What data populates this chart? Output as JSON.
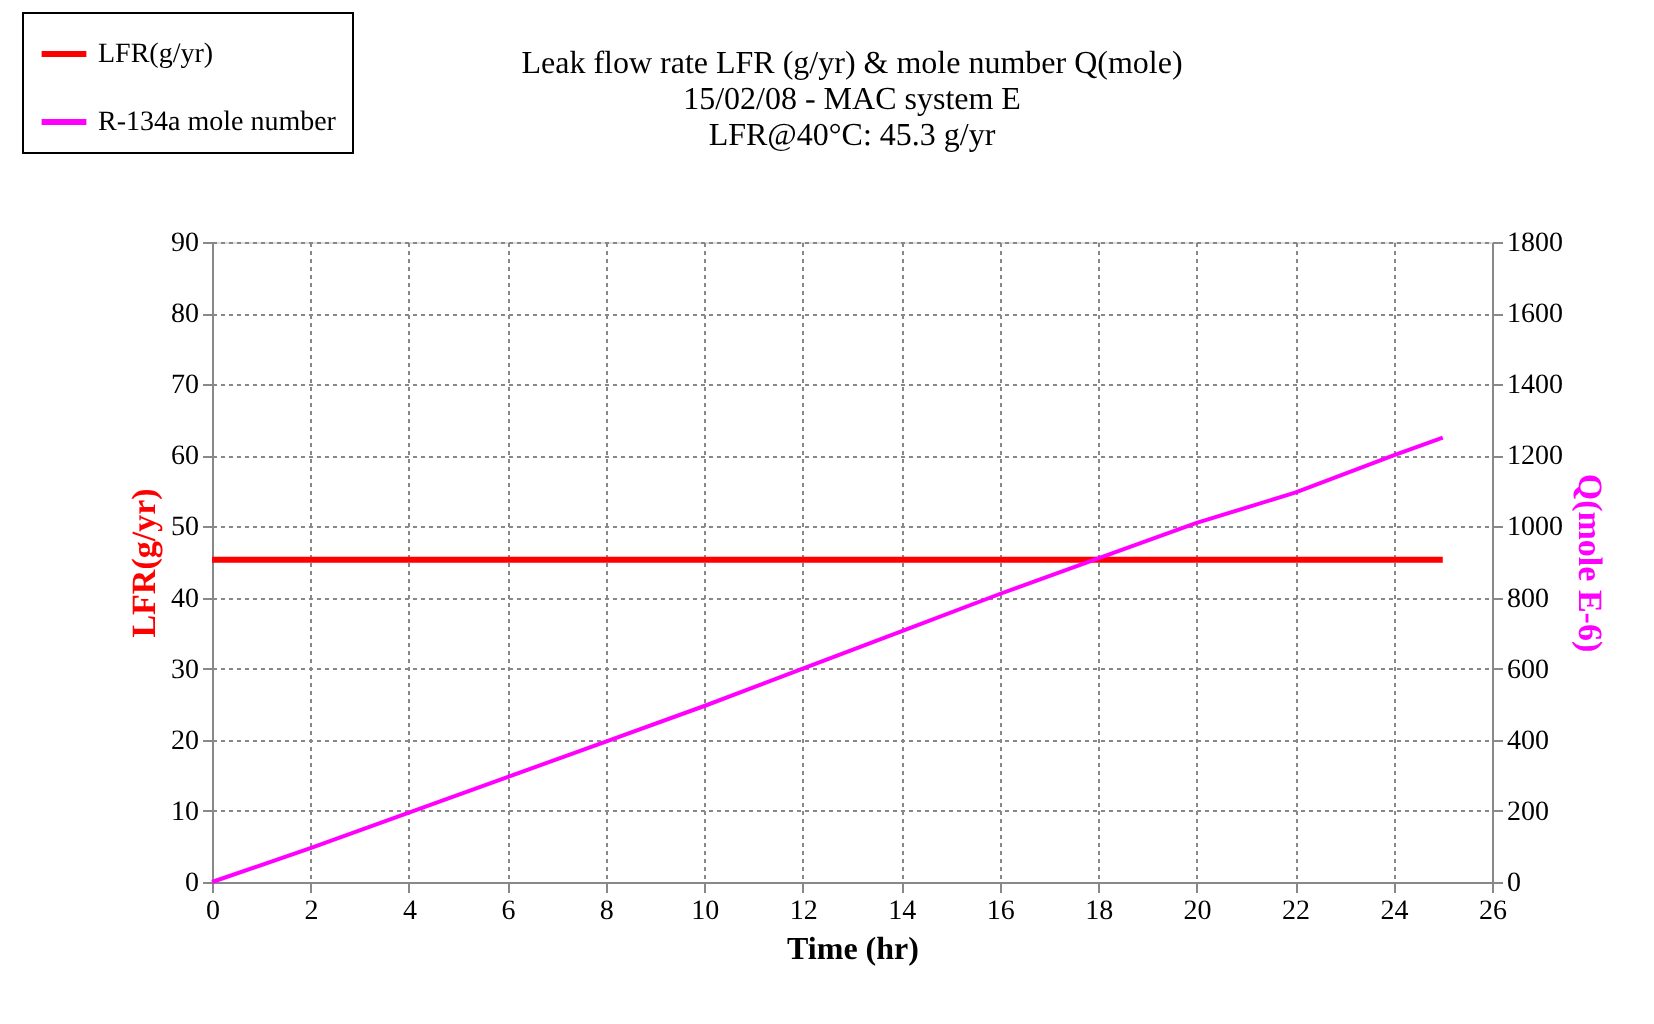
{
  "chart_data": {
    "type": "line",
    "title": [
      "Leak flow rate LFR (g/yr) & mole number Q(mole)",
      "15/02/08 - MAC system E",
      "LFR@40°C: 45.3 g/yr"
    ],
    "xlabel": "Time (hr)",
    "ylabel": "LFR(g/yr)",
    "y2label": "Q(mole E-6)",
    "xlim": [
      0,
      26
    ],
    "xticks": [
      0,
      2,
      4,
      6,
      8,
      10,
      12,
      14,
      16,
      18,
      20,
      22,
      24,
      26
    ],
    "ylim": [
      0,
      90
    ],
    "yticks": [
      0,
      10,
      20,
      30,
      40,
      50,
      60,
      70,
      80,
      90
    ],
    "y2lim": [
      0,
      1800
    ],
    "y2ticks": [
      0,
      200,
      400,
      600,
      800,
      1000,
      1200,
      1400,
      1600,
      1800
    ],
    "grid": true,
    "legend": "top left",
    "marker": "none",
    "line_style": "solid",
    "series": [
      {
        "name": "LFR(g/yr)",
        "color": "#ff0000",
        "x": [
          0,
          25
        ],
        "values": [
          45.3,
          45.3
        ]
      },
      {
        "name": "R-134a mole number",
        "color": "#ff00ff",
        "axis": "y2",
        "x": [
          0,
          2,
          4,
          6,
          8,
          10,
          12,
          14,
          16,
          18,
          20,
          22,
          24,
          25
        ],
        "values": [
          0,
          95,
          195,
          295,
          395,
          495,
          600,
          705,
          810,
          910,
          1010,
          1095,
          1200,
          1250
        ]
      }
    ]
  }
}
